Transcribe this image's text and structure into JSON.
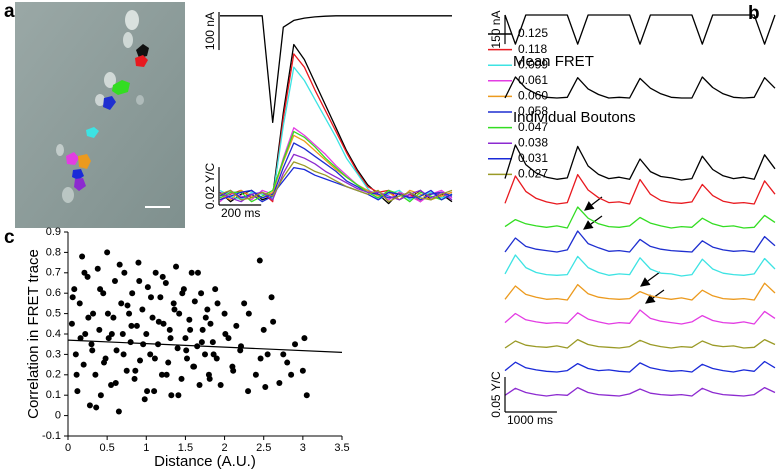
{
  "panel_labels": [
    "a",
    "b",
    "c"
  ],
  "chart_data": [
    {
      "type": "line",
      "legend": "right",
      "x": [
        0,
        50,
        100,
        150,
        200,
        250,
        300,
        350,
        400,
        450,
        500,
        550,
        600,
        650,
        700,
        750,
        800,
        850,
        900,
        950,
        1000,
        1050,
        1100
      ],
      "xlim": [
        0,
        1100
      ],
      "ylim": [
        -0.01,
        0.085
      ],
      "y2lim": [
        -300,
        10
      ],
      "series": [
        {
          "axis": "y2",
          "color": "#000000",
          "values": [
            0,
            0,
            0,
            0,
            0,
            -280,
            -30,
            -12,
            -6,
            -3,
            -1,
            0,
            0,
            0,
            0,
            0,
            0,
            0,
            0,
            0,
            0,
            0,
            0
          ]
        },
        {
          "name": "0.125",
          "color": "#000000",
          "values": [
            0.002,
            -0.003,
            0.001,
            0.003,
            -0.002,
            0.0,
            0.044,
            0.08,
            0.072,
            0.06,
            0.048,
            0.036,
            0.024,
            0.014,
            0.006,
            0.001,
            -0.004,
            0.002,
            -0.001,
            0.003,
            -0.002,
            0.001,
            -0.003
          ]
        },
        {
          "name": "0.118",
          "color": "#e8191f",
          "values": [
            -0.002,
            0.001,
            0.003,
            -0.001,
            0.002,
            -0.003,
            0.041,
            0.075,
            0.068,
            0.056,
            0.045,
            0.034,
            0.023,
            0.013,
            0.005,
            0.002,
            0.003,
            -0.002,
            0.001,
            -0.003,
            0.002,
            0.0,
            0.002
          ]
        },
        {
          "name": "0.099",
          "color": "#3de3e3",
          "values": [
            0.003,
            0.0,
            -0.002,
            0.002,
            0.001,
            -0.001,
            0.037,
            0.068,
            0.061,
            0.051,
            0.041,
            0.031,
            0.02,
            0.012,
            0.004,
            -0.002,
            0.001,
            0.003,
            -0.002,
            0.0,
            0.002,
            -0.001,
            0.001
          ]
        },
        {
          "name": "0.061",
          "color": "#e33de3",
          "values": [
            -0.003,
            0.002,
            0.0,
            -0.002,
            0.003,
            0.001,
            0.02,
            0.036,
            0.032,
            0.027,
            0.022,
            0.016,
            0.011,
            0.006,
            0.003,
            0.001,
            -0.002,
            0.002,
            0.0,
            -0.003,
            0.001,
            0.003,
            -0.001
          ]
        },
        {
          "name": "0.060",
          "color": "#ec9a1e",
          "values": [
            0.001,
            -0.002,
            0.003,
            0.0,
            -0.001,
            0.002,
            0.018,
            0.032,
            0.029,
            0.024,
            0.019,
            0.014,
            0.01,
            0.006,
            0.003,
            0.0,
            0.002,
            -0.002,
            0.003,
            0.001,
            -0.002,
            0.0,
            0.002
          ]
        },
        {
          "name": "0.058",
          "color": "#1f2fd0",
          "values": [
            0.0,
            0.003,
            -0.001,
            0.001,
            -0.003,
            0.0,
            0.015,
            0.028,
            0.025,
            0.021,
            0.017,
            0.013,
            0.008,
            0.005,
            0.002,
            0.001,
            -0.001,
            0.0,
            0.002,
            -0.002,
            0.001,
            0.002,
            0.0
          ]
        },
        {
          "name": "0.047",
          "color": "#33dd22",
          "values": [
            -0.001,
            0.002,
            0.002,
            -0.003,
            0.0,
            0.003,
            0.019,
            0.034,
            0.031,
            0.026,
            0.02,
            0.015,
            0.01,
            0.006,
            0.002,
            -0.001,
            0.003,
            0.001,
            -0.003,
            0.002,
            0.0,
            -0.002,
            0.001
          ]
        },
        {
          "name": "0.038",
          "color": "#8c2ad0",
          "values": [
            0.002,
            -0.001,
            -0.003,
            0.001,
            0.002,
            -0.002,
            0.012,
            0.022,
            0.02,
            0.017,
            0.013,
            0.01,
            0.007,
            0.004,
            0.002,
            0.002,
            0.0,
            -0.002,
            0.001,
            0.003,
            -0.001,
            0.002,
            -0.002
          ]
        },
        {
          "name": "0.031",
          "color": "#1a2ad8",
          "values": [
            -0.002,
            0.0,
            0.002,
            0.003,
            -0.001,
            0.001,
            0.008,
            0.015,
            0.014,
            0.011,
            0.009,
            0.007,
            0.005,
            0.003,
            0.001,
            -0.002,
            0.002,
            0.001,
            -0.001,
            0.0,
            0.003,
            -0.002,
            0.001
          ]
        },
        {
          "name": "0.027",
          "color": "#9a9a26",
          "values": [
            0.001,
            0.003,
            -0.002,
            -0.001,
            0.002,
            0.0,
            0.01,
            0.018,
            0.016,
            0.013,
            0.011,
            0.008,
            0.005,
            0.003,
            0.001,
            0.003,
            -0.003,
            0.0,
            0.002,
            -0.001,
            -0.002,
            0.001,
            0.003
          ]
        }
      ],
      "scale_bars": [
        {
          "axis": "y2",
          "value": 100,
          "label": "100 nA"
        },
        {
          "axis": "y",
          "value": 0.02,
          "label": "0.02 Y/C"
        },
        {
          "axis": "x",
          "value": 200,
          "label": "200 ms"
        }
      ]
    },
    {
      "type": "line",
      "group_label": "Individual Boutons",
      "x": [
        0,
        200,
        400,
        600,
        800,
        1000,
        1200,
        1400,
        1600,
        1800,
        2000,
        2200,
        2400,
        2600,
        2800,
        3000,
        3200,
        3400,
        3600,
        3800,
        4000,
        4200,
        4400,
        4600,
        4800,
        5000,
        5200
      ],
      "xlim": [
        0,
        5200
      ],
      "ylim": [
        -0.01,
        0.05
      ],
      "y2lim": [
        -160,
        5
      ],
      "series": [
        {
          "axis": "y2",
          "color": "#000000",
          "values": [
            0,
            -150,
            0,
            0,
            0,
            0,
            0,
            -150,
            0,
            0,
            0,
            0,
            0,
            -150,
            0,
            0,
            0,
            0,
            0,
            -150,
            0,
            0,
            0,
            0,
            0,
            -150,
            0
          ]
        },
        {
          "name": "Mean FRET",
          "color": "#000000",
          "values": [
            0.0,
            0.03,
            0.014,
            0.006,
            0.001,
            0.0,
            0.001,
            0.029,
            0.013,
            0.005,
            0.0,
            0.001,
            0.0,
            0.028,
            0.014,
            0.006,
            0.001,
            0.0,
            0.0,
            0.03,
            0.015,
            0.006,
            0.001,
            0.0,
            0.001,
            0.029,
            0.014
          ]
        },
        {
          "color": "#000000",
          "values": [
            0.002,
            0.05,
            0.022,
            0.01,
            0.004,
            0.001,
            0.003,
            0.048,
            0.02,
            0.008,
            0.002,
            0.004,
            0.001,
            0.03,
            0.012,
            0.005,
            0.003,
            0.0,
            0.002,
            0.034,
            0.015,
            0.006,
            0.002,
            0.004,
            0.001,
            0.036,
            0.016
          ]
        },
        {
          "color": "#e8191f",
          "values": [
            0.001,
            0.04,
            0.018,
            0.008,
            0.003,
            0.0,
            0.002,
            0.042,
            0.02,
            0.009,
            0.002,
            0.003,
            0.0,
            0.035,
            0.014,
            0.005,
            0.002,
            0.001,
            0.003,
            0.028,
            0.012,
            0.004,
            0.001,
            0.002,
            0.0,
            0.033,
            0.014
          ]
        },
        {
          "color": "#33dd22",
          "values": [
            0.002,
            0.012,
            0.006,
            0.003,
            0.001,
            0.003,
            0.0,
            0.03,
            0.014,
            0.006,
            0.002,
            0.001,
            0.003,
            0.015,
            0.007,
            0.003,
            0.0,
            0.002,
            0.001,
            0.014,
            0.006,
            0.002,
            0.003,
            0.0,
            0.001,
            0.018,
            0.008
          ]
        },
        {
          "color": "#1f2fd0",
          "values": [
            0.0,
            0.02,
            0.008,
            0.004,
            0.002,
            0.0,
            0.003,
            0.03,
            0.012,
            0.006,
            0.001,
            0.002,
            0.0,
            0.018,
            0.008,
            0.004,
            0.002,
            0.001,
            0.0,
            0.016,
            0.007,
            0.003,
            0.001,
            0.002,
            0.0,
            0.022,
            0.009
          ]
        },
        {
          "color": "#3de3e3",
          "values": [
            0.003,
            0.03,
            0.012,
            0.005,
            0.002,
            0.001,
            0.002,
            0.028,
            0.012,
            0.005,
            0.001,
            0.003,
            0.002,
            0.026,
            0.01,
            0.004,
            0.003,
            0.0,
            0.002,
            0.024,
            0.01,
            0.004,
            0.002,
            0.001,
            0.003,
            0.025,
            0.01
          ]
        },
        {
          "color": "#ec9a1e",
          "values": [
            0.001,
            0.02,
            0.008,
            0.004,
            0.001,
            0.002,
            0.0,
            0.022,
            0.009,
            0.004,
            0.002,
            0.001,
            0.002,
            0.012,
            0.006,
            0.003,
            0.001,
            0.003,
            0.0,
            0.014,
            0.006,
            0.002,
            0.001,
            0.002,
            0.0,
            0.024,
            0.01
          ]
        },
        {
          "color": "#e33de3",
          "values": [
            0.002,
            0.015,
            0.006,
            0.003,
            0.001,
            0.002,
            0.001,
            0.016,
            0.007,
            0.003,
            0.0,
            0.002,
            0.001,
            0.02,
            0.008,
            0.004,
            0.002,
            0.0,
            0.003,
            0.012,
            0.005,
            0.002,
            0.001,
            0.003,
            0.0,
            0.018,
            0.008
          ]
        },
        {
          "color": "#9a9a26",
          "values": [
            0.0,
            0.01,
            0.004,
            0.002,
            0.001,
            0.003,
            0.0,
            0.012,
            0.005,
            0.002,
            0.001,
            0.0,
            0.002,
            0.011,
            0.005,
            0.002,
            0.0,
            0.002,
            0.001,
            0.01,
            0.004,
            0.002,
            0.003,
            0.0,
            0.001,
            0.012,
            0.005
          ]
        },
        {
          "color": "#1a2ad8",
          "values": [
            0.002,
            0.014,
            0.006,
            0.003,
            0.001,
            0.0,
            0.002,
            0.012,
            0.005,
            0.002,
            0.003,
            0.001,
            0.0,
            0.013,
            0.006,
            0.003,
            0.001,
            0.002,
            0.0,
            0.011,
            0.005,
            0.002,
            0.0,
            0.003,
            0.001,
            0.015,
            0.006
          ]
        },
        {
          "color": "#8c2ad0",
          "values": [
            0.001,
            0.011,
            0.005,
            0.002,
            0.0,
            0.002,
            0.001,
            0.012,
            0.005,
            0.002,
            0.001,
            0.0,
            0.003,
            0.01,
            0.004,
            0.002,
            0.001,
            0.002,
            0.0,
            0.011,
            0.005,
            0.002,
            0.001,
            0.0,
            0.002,
            0.012,
            0.005
          ]
        }
      ],
      "scale_bars": [
        {
          "axis": "y2",
          "value": 150,
          "label": "150 nA"
        },
        {
          "axis": "y",
          "value": 0.05,
          "label": "0.05 Y/C"
        },
        {
          "axis": "x",
          "value": 1000,
          "label": "1000 ms"
        }
      ]
    },
    {
      "type": "scatter",
      "xlabel": "Distance (A.U.)",
      "ylabel": "Correlation in FRET trace",
      "color": "#000000",
      "xlim": [
        0,
        3.5
      ],
      "ylim": [
        -0.1,
        0.9
      ],
      "xticks": [
        0,
        0.5,
        1,
        1.5,
        2,
        2.5,
        3,
        3.5
      ],
      "yticks": [
        -0.1,
        0,
        0.1,
        0.2,
        0.3,
        0.4,
        0.5,
        0.6,
        0.7,
        0.8,
        0.9
      ],
      "x": [
        0.05,
        0.08,
        0.1,
        0.12,
        0.15,
        0.18,
        0.2,
        0.22,
        0.25,
        0.28,
        0.3,
        0.32,
        0.35,
        0.38,
        0.4,
        0.42,
        0.45,
        0.48,
        0.5,
        0.52,
        0.55,
        0.58,
        0.6,
        0.62,
        0.65,
        0.68,
        0.7,
        0.72,
        0.75,
        0.78,
        0.8,
        0.82,
        0.85,
        0.88,
        0.9,
        0.92,
        0.95,
        0.98,
        1.0,
        1.02,
        1.05,
        1.08,
        1.1,
        1.12,
        1.15,
        1.18,
        1.2,
        1.22,
        1.25,
        1.28,
        1.3,
        1.32,
        1.35,
        1.38,
        1.4,
        1.42,
        1.45,
        1.48,
        1.5,
        1.52,
        1.55,
        1.58,
        1.6,
        1.62,
        1.65,
        1.68,
        1.7,
        1.72,
        1.75,
        1.78,
        1.8,
        1.82,
        1.85,
        1.88,
        1.9,
        1.95,
        2.0,
        2.05,
        2.1,
        2.15,
        2.2,
        2.25,
        2.3,
        2.4,
        2.45,
        2.5,
        2.55,
        2.6,
        2.7,
        2.8,
        2.9,
        3.0,
        3.05,
        0.06,
        0.11,
        0.16,
        0.21,
        0.26,
        0.31,
        0.36,
        0.41,
        0.46,
        0.51,
        0.56,
        0.61,
        0.66,
        0.71,
        0.76,
        0.81,
        0.86,
        0.91,
        0.96,
        1.01,
        1.06,
        1.11,
        1.16,
        1.21,
        1.26,
        1.31,
        1.36,
        1.41,
        1.46,
        1.51,
        1.56,
        1.61,
        1.66,
        1.71,
        1.76,
        1.81,
        1.86,
        1.91,
        2.01,
        2.11,
        2.21,
        2.31,
        2.46,
        2.52,
        2.62,
        2.75,
        2.85,
        3.02
      ],
      "values": [
        0.45,
        0.62,
        0.3,
        0.12,
        0.55,
        0.78,
        0.25,
        0.4,
        0.68,
        0.05,
        0.35,
        0.5,
        0.2,
        0.72,
        0.42,
        0.1,
        0.6,
        0.28,
        0.8,
        0.38,
        0.15,
        0.48,
        0.66,
        0.32,
        0.02,
        0.55,
        0.4,
        0.7,
        0.22,
        0.5,
        0.36,
        0.6,
        0.18,
        0.44,
        0.75,
        0.27,
        0.52,
        0.08,
        0.4,
        0.63,
        0.3,
        0.48,
        0.12,
        0.7,
        0.35,
        0.58,
        0.2,
        0.45,
        0.65,
        0.26,
        0.42,
        0.1,
        0.55,
        0.73,
        0.33,
        0.5,
        0.18,
        0.62,
        0.38,
        0.28,
        0.47,
        0.7,
        0.24,
        0.56,
        0.34,
        0.15,
        0.6,
        0.42,
        0.3,
        0.52,
        0.2,
        0.45,
        0.36,
        0.62,
        0.28,
        0.15,
        0.5,
        0.38,
        0.24,
        0.44,
        0.32,
        0.55,
        0.12,
        0.2,
        0.76,
        0.42,
        0.3,
        0.58,
        0.16,
        0.26,
        0.35,
        0.22,
        0.1,
        0.58,
        0.2,
        0.38,
        0.7,
        0.48,
        0.32,
        0.04,
        0.62,
        0.26,
        0.5,
        0.4,
        0.16,
        0.74,
        0.3,
        0.54,
        0.44,
        0.22,
        0.66,
        0.35,
        0.12,
        0.58,
        0.28,
        0.46,
        0.68,
        0.2,
        0.38,
        0.52,
        0.1,
        0.6,
        0.32,
        0.42,
        0.24,
        0.7,
        0.36,
        0.48,
        0.18,
        0.3,
        0.55,
        0.4,
        0.22,
        0.34,
        0.5,
        0.28,
        0.14,
        0.46,
        0.3,
        0.2,
        0.38
      ],
      "fit": {
        "x": [
          0,
          3.5
        ],
        "values": [
          0.37,
          0.31
        ]
      }
    }
  ]
}
